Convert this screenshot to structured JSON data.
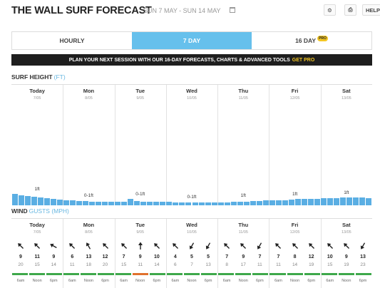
{
  "header": {
    "title": "THE WALL SURF FORECAST",
    "date_range": "SUN 7 MAY - SUN 14 MAY",
    "help_label": "HELP"
  },
  "tabs": [
    {
      "label": "HOURLY",
      "active": false
    },
    {
      "label": "7 DAY",
      "active": true
    },
    {
      "label": "16 DAY",
      "active": false,
      "badge": "PRO"
    }
  ],
  "promo": {
    "text": "PLAN YOUR NEXT SESSION WITH OUR 16-DAY FORECASTS, CHARTS & ADVANCED TOOLS",
    "cta": "GET PRO"
  },
  "surf": {
    "title": "SURF HEIGHT",
    "unit": "(FT)"
  },
  "wind": {
    "title": "WIND",
    "unit": "GUSTS (MPH)"
  },
  "days": [
    {
      "name": "Today",
      "date": "7/05",
      "wave_label": "1ft"
    },
    {
      "name": "Mon",
      "date": "8/05",
      "wave_label": "0-1ft"
    },
    {
      "name": "Tue",
      "date": "9/05",
      "wave_label": "0-1ft"
    },
    {
      "name": "Wed",
      "date": "10/05",
      "wave_label": "0-1ft"
    },
    {
      "name": "Thu",
      "date": "11/05",
      "wave_label": "1ft"
    },
    {
      "name": "Fri",
      "date": "12/05",
      "wave_label": "1ft"
    },
    {
      "name": "Sat",
      "date": "13/05",
      "wave_label": "1ft"
    }
  ],
  "chart_data": {
    "type": "bar",
    "ylabel": "SURF HEIGHT (FT)",
    "values": [
      1.4,
      1.25,
      1.15,
      1.05,
      0.95,
      0.85,
      0.75,
      0.7,
      0.65,
      0.6,
      0.55,
      0.5,
      0.45,
      0.45,
      0.45,
      0.45,
      0.45,
      0.45,
      0.75,
      0.55,
      0.45,
      0.45,
      0.45,
      0.4,
      0.4,
      0.35,
      0.35,
      0.35,
      0.35,
      0.35,
      0.35,
      0.35,
      0.35,
      0.35,
      0.4,
      0.45,
      0.45,
      0.5,
      0.55,
      0.6,
      0.6,
      0.65,
      0.65,
      0.7,
      0.75,
      0.75,
      0.75,
      0.8,
      0.85,
      0.9,
      0.9,
      0.95,
      0.95,
      0.95,
      0.95,
      0.9
    ]
  },
  "wind_times": [
    "6am",
    "Noon",
    "6pm"
  ],
  "wind_data": [
    {
      "speed": "9",
      "gust": "20",
      "dir": 135,
      "color": "#3ea84a"
    },
    {
      "speed": "11",
      "gust": "15",
      "dir": 135,
      "color": "#3ea84a"
    },
    {
      "speed": "9",
      "gust": "14",
      "dir": 120,
      "color": "#3ea84a"
    },
    {
      "speed": "6",
      "gust": "11",
      "dir": 135,
      "color": "#3ea84a"
    },
    {
      "speed": "13",
      "gust": "18",
      "dir": 150,
      "color": "#3ea84a"
    },
    {
      "speed": "12",
      "gust": "20",
      "dir": 135,
      "color": "#3ea84a"
    },
    {
      "speed": "7",
      "gust": "15",
      "dir": 135,
      "color": "#3ea84a"
    },
    {
      "speed": "9",
      "gust": "11",
      "dir": 180,
      "color": "#e0712d"
    },
    {
      "speed": "10",
      "gust": "14",
      "dir": 135,
      "color": "#3ea84a"
    },
    {
      "speed": "4",
      "gust": "6",
      "dir": 135,
      "color": "#3ea84a"
    },
    {
      "speed": "5",
      "gust": "7",
      "dir": 30,
      "color": "#3ea84a"
    },
    {
      "speed": "5",
      "gust": "13",
      "dir": 30,
      "color": "#3ea84a"
    },
    {
      "speed": "7",
      "gust": "8",
      "dir": 135,
      "color": "#3ea84a"
    },
    {
      "speed": "9",
      "gust": "17",
      "dir": 135,
      "color": "#3ea84a"
    },
    {
      "speed": "7",
      "gust": "11",
      "dir": 30,
      "color": "#3ea84a"
    },
    {
      "speed": "7",
      "gust": "11",
      "dir": 135,
      "color": "#3ea84a"
    },
    {
      "speed": "8",
      "gust": "14",
      "dir": 135,
      "color": "#3ea84a"
    },
    {
      "speed": "12",
      "gust": "19",
      "dir": 135,
      "color": "#3ea84a"
    },
    {
      "speed": "10",
      "gust": "15",
      "dir": 135,
      "color": "#3ea84a"
    },
    {
      "speed": "9",
      "gust": "19",
      "dir": 135,
      "color": "#3ea84a"
    },
    {
      "speed": "13",
      "gust": "23",
      "dir": 30,
      "color": "#3ea84a"
    }
  ]
}
